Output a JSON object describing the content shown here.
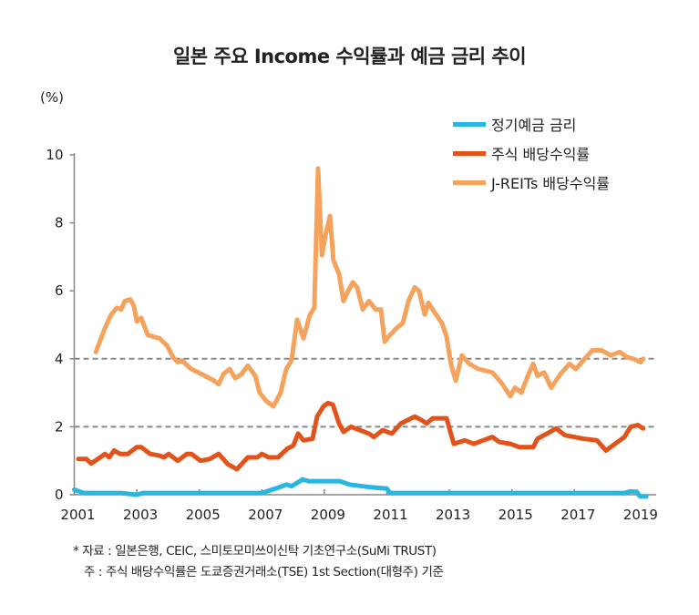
{
  "chart_data": {
    "type": "line",
    "title": "일본 주요 Income 수익률과 예금 금리 추이",
    "ylabel": "(%)",
    "xlabel": "",
    "xlim": [
      2001,
      2019.5
    ],
    "ylim": [
      0,
      10
    ],
    "xticks": [
      "2001",
      "2003",
      "2005",
      "2007",
      "2009",
      "2011",
      "2013",
      "2015",
      "2017",
      "2019"
    ],
    "yticks": [
      "0",
      "2",
      "4",
      "6",
      "8",
      "10"
    ],
    "reference_lines": [
      2,
      4
    ],
    "legend_position": "top-right",
    "series": [
      {
        "name": "정기예금 금리",
        "color": "#29b6e0",
        "x": [
          2001,
          2001.3,
          2002.5,
          2003.0,
          2003.2,
          2007.0,
          2007.5,
          2007.8,
          2007.95,
          2008.3,
          2008.5,
          2009.5,
          2009.8,
          2010.5,
          2011.0,
          2011.1,
          2018.6,
          2018.8,
          2019.0,
          2019.1,
          2019.3
        ],
        "y": [
          0.15,
          0.05,
          0.05,
          0.0,
          0.05,
          0.05,
          0.2,
          0.3,
          0.25,
          0.45,
          0.4,
          0.4,
          0.3,
          0.22,
          0.18,
          0.05,
          0.05,
          0.1,
          0.08,
          -0.05,
          -0.05
        ]
      },
      {
        "name": "주식 배당수익률",
        "color": "#e2521b",
        "x": [
          2001.13,
          2001.39,
          2001.54,
          2001.83,
          2001.98,
          2002.12,
          2002.27,
          2002.47,
          2002.71,
          2003.0,
          2003.14,
          2003.43,
          2003.73,
          2003.87,
          2004.02,
          2004.31,
          2004.6,
          2004.75,
          2005.04,
          2005.33,
          2005.62,
          2005.91,
          2006.2,
          2006.55,
          2006.85,
          2007.0,
          2007.22,
          2007.52,
          2007.81,
          2008.01,
          2008.16,
          2008.33,
          2008.62,
          2008.77,
          2008.97,
          2009.12,
          2009.27,
          2009.47,
          2009.61,
          2009.85,
          2010.14,
          2010.43,
          2010.58,
          2010.87,
          2011.16,
          2011.45,
          2011.89,
          2012.1,
          2012.27,
          2012.47,
          2012.91,
          2013.14,
          2013.49,
          2013.78,
          2014.08,
          2014.37,
          2014.6,
          2014.95,
          2015.24,
          2015.68,
          2015.82,
          2016.12,
          2016.41,
          2016.7,
          2017.28,
          2017.72,
          2018.01,
          2018.3,
          2018.6,
          2018.8,
          2019.03,
          2019.2
        ],
        "y": [
          1.05,
          1.05,
          0.92,
          1.1,
          1.2,
          1.1,
          1.3,
          1.2,
          1.2,
          1.4,
          1.4,
          1.2,
          1.15,
          1.1,
          1.2,
          1.0,
          1.2,
          1.2,
          1.0,
          1.05,
          1.2,
          0.9,
          0.75,
          1.1,
          1.1,
          1.2,
          1.1,
          1.1,
          1.35,
          1.45,
          1.8,
          1.6,
          1.65,
          2.3,
          2.6,
          2.7,
          2.65,
          2.1,
          1.85,
          2.0,
          1.9,
          1.8,
          1.7,
          1.9,
          1.8,
          2.1,
          2.3,
          2.2,
          2.1,
          2.25,
          2.25,
          1.5,
          1.6,
          1.5,
          1.6,
          1.7,
          1.55,
          1.5,
          1.4,
          1.4,
          1.65,
          1.8,
          1.95,
          1.75,
          1.65,
          1.6,
          1.3,
          1.5,
          1.7,
          2.0,
          2.05,
          1.95
        ]
      },
      {
        "name": "J-REITs 배당수익률",
        "color": "#f5a35c",
        "x": [
          2001.69,
          2001.98,
          2002.18,
          2002.36,
          2002.5,
          2002.62,
          2002.79,
          2002.91,
          2003.0,
          2003.14,
          2003.35,
          2003.73,
          2003.96,
          2004.16,
          2004.31,
          2004.45,
          2004.74,
          2005.18,
          2005.48,
          2005.62,
          2005.77,
          2005.97,
          2006.15,
          2006.35,
          2006.55,
          2006.79,
          2006.93,
          2007.14,
          2007.37,
          2007.6,
          2007.78,
          2007.95,
          2008.13,
          2008.33,
          2008.54,
          2008.68,
          2008.8,
          2008.92,
          2009.03,
          2009.18,
          2009.29,
          2009.47,
          2009.61,
          2009.76,
          2009.91,
          2010.05,
          2010.23,
          2010.43,
          2010.64,
          2010.81,
          2010.93,
          2011.1,
          2011.31,
          2011.51,
          2011.69,
          2011.89,
          2012.03,
          2012.21,
          2012.33,
          2012.5,
          2012.76,
          2012.91,
          2013.05,
          2013.2,
          2013.4,
          2013.64,
          2013.93,
          2014.37,
          2014.66,
          2014.95,
          2015.1,
          2015.3,
          2015.53,
          2015.68,
          2015.82,
          2016.03,
          2016.26,
          2016.55,
          2016.84,
          2017.05,
          2017.28,
          2017.57,
          2017.87,
          2018.16,
          2018.45,
          2018.68,
          2018.89,
          2019.12,
          2019.2
        ],
        "y": [
          4.2,
          4.9,
          5.3,
          5.5,
          5.45,
          5.7,
          5.75,
          5.55,
          5.1,
          5.2,
          4.7,
          4.6,
          4.4,
          4.05,
          3.9,
          3.95,
          3.7,
          3.5,
          3.35,
          3.25,
          3.55,
          3.7,
          3.43,
          3.55,
          3.8,
          3.5,
          3.0,
          2.76,
          2.6,
          3.0,
          3.7,
          3.95,
          5.15,
          4.6,
          5.3,
          5.5,
          9.6,
          7.05,
          7.6,
          8.2,
          6.9,
          6.5,
          5.7,
          6.0,
          6.25,
          6.1,
          5.45,
          5.7,
          5.45,
          5.45,
          4.5,
          4.7,
          4.9,
          5.05,
          5.7,
          6.1,
          6.0,
          5.3,
          5.65,
          5.4,
          5.05,
          4.65,
          3.85,
          3.35,
          4.1,
          3.85,
          3.7,
          3.6,
          3.3,
          2.9,
          3.15,
          3.0,
          3.55,
          3.85,
          3.5,
          3.6,
          3.15,
          3.55,
          3.85,
          3.7,
          3.95,
          4.25,
          4.25,
          4.1,
          4.2,
          4.05,
          4.0,
          3.9,
          4.0
        ]
      }
    ]
  },
  "notes": {
    "source": "* 자료 : 일본은행, CEIC, 스미토모미쓰이신탁 기초연구소(SuMi TRUST)",
    "footnote": "주 : 주식 배당수익률은 도쿄증권거래소(TSE) 1st Section(대형주) 기준"
  }
}
